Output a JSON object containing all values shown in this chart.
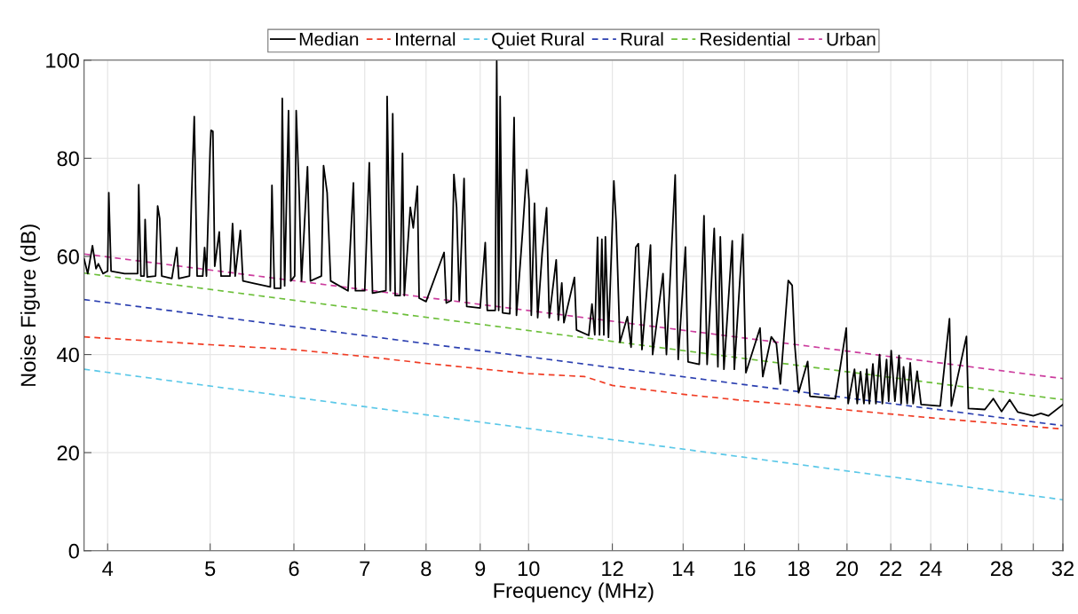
{
  "chart_data": {
    "type": "line",
    "xlabel": "Frequency (MHz)",
    "ylabel": "Noise Figure (dB)",
    "log": "x",
    "grid": true,
    "legend": "top",
    "xlim": [
      3.8,
      32
    ],
    "xticks": [
      4,
      5,
      6,
      7,
      8,
      9,
      10,
      12,
      14,
      16,
      18,
      20,
      22,
      24,
      {
        "value": 26,
        "label": null
      },
      28,
      {
        "value": 30,
        "label": null
      },
      32
    ],
    "ylim": [
      0,
      100
    ],
    "yticks": [
      0,
      20,
      40,
      60,
      80,
      100
    ],
    "series": [
      {
        "name": "Median",
        "color": "#000000",
        "line_style": "solid",
        "x": [
          3.8,
          3.83,
          3.87,
          3.9,
          3.92,
          3.96,
          4.0,
          4.01,
          4.03,
          4.15,
          4.27,
          4.28,
          4.3,
          4.33,
          4.34,
          4.36,
          4.44,
          4.46,
          4.48,
          4.5,
          4.6,
          4.65,
          4.67,
          4.78,
          4.8,
          4.83,
          4.86,
          4.92,
          4.94,
          4.96,
          5.0,
          5.01,
          5.03,
          5.05,
          5.1,
          5.12,
          5.22,
          5.25,
          5.28,
          5.34,
          5.37,
          5.5,
          5.7,
          5.72,
          5.75,
          5.83,
          5.85,
          5.88,
          5.93,
          5.96,
          6.01,
          6.03,
          6.07,
          6.1,
          6.18,
          6.22,
          6.37,
          6.4,
          6.45,
          6.5,
          6.75,
          6.83,
          6.86,
          7.0,
          7.07,
          7.12,
          7.33,
          7.35,
          7.4,
          7.44,
          7.48,
          7.56,
          7.6,
          7.63,
          7.73,
          7.78,
          7.85,
          7.88,
          8.0,
          8.32,
          8.36,
          8.45,
          8.5,
          8.55,
          8.6,
          8.69,
          8.74,
          9.0,
          9.1,
          9.14,
          9.3,
          9.33,
          9.37,
          9.4,
          9.45,
          9.6,
          9.69,
          9.74,
          9.87,
          9.96,
          10.01,
          10.06,
          10.13,
          10.2,
          10.3,
          10.4,
          10.46,
          10.62,
          10.67,
          10.75,
          10.8,
          11.05,
          11.1,
          11.4,
          11.48,
          11.55,
          11.62,
          11.67,
          11.73,
          11.78,
          11.82,
          11.9,
          12.04,
          12.1,
          12.2,
          12.4,
          12.5,
          12.63,
          12.7,
          12.8,
          13.04,
          13.1,
          13.4,
          13.5,
          13.76,
          13.85,
          14.07,
          14.15,
          14.5,
          14.65,
          14.75,
          14.98,
          15.1,
          15.18,
          15.3,
          15.58,
          15.65,
          15.94,
          16.05,
          16.55,
          16.65,
          16.96,
          17.15,
          17.3,
          17.6,
          17.75,
          17.85,
          18.0,
          18.36,
          18.45,
          19.5,
          19.97,
          20.05,
          20.33,
          20.45,
          20.6,
          20.75,
          20.88,
          21.0,
          21.16,
          21.3,
          21.47,
          21.6,
          21.8,
          21.9,
          22.02,
          22.2,
          22.4,
          22.5,
          22.62,
          22.8,
          22.95,
          23.1,
          23.3,
          23.5,
          24.5,
          25.0,
          25.1,
          25.94,
          26.05,
          27.0,
          27.5,
          28.0,
          28.5,
          29.0,
          30.0,
          30.5,
          31.0,
          32.0
        ],
        "values": [
          59.5,
          56.5,
          62.2,
          57.5,
          58.5,
          56.5,
          57,
          73,
          57,
          56.5,
          56.5,
          74.6,
          56,
          56,
          67.5,
          55.8,
          56,
          70.3,
          67.7,
          56,
          55.5,
          61.8,
          55.5,
          56,
          71,
          88.5,
          56,
          56,
          61.8,
          56,
          82,
          85.7,
          85.5,
          58,
          65,
          56,
          56,
          66.7,
          56,
          65.3,
          55,
          54.5,
          53.8,
          74.5,
          53.5,
          53.5,
          92.2,
          54,
          89.7,
          55,
          56,
          89.7,
          72.6,
          55,
          78.3,
          55,
          56,
          78.5,
          73,
          55,
          53,
          75,
          53,
          53,
          79.1,
          52.5,
          53,
          92.6,
          53,
          89.1,
          52,
          52,
          81,
          52,
          70,
          65.8,
          74.3,
          51.5,
          50.8,
          60.8,
          50.5,
          51,
          76.7,
          70,
          51,
          75.9,
          49.8,
          49.5,
          62.8,
          49,
          49,
          99.8,
          49,
          92.6,
          48.5,
          48.3,
          88.3,
          48,
          65,
          77.7,
          71.5,
          48,
          70.8,
          47.5,
          60.6,
          69.9,
          47.5,
          59.3,
          47,
          54.6,
          46.5,
          55.7,
          45,
          43.9,
          50.3,
          44,
          63.9,
          44,
          63.5,
          44,
          64,
          43.5,
          75.4,
          67,
          42.5,
          47.7,
          41.5,
          61.9,
          62.6,
          41,
          62.3,
          40,
          56.5,
          40,
          76.6,
          39,
          61.9,
          38.5,
          38,
          68.3,
          38,
          65.7,
          37.5,
          64,
          37,
          63.2,
          37,
          64.5,
          36.3,
          45.4,
          35.5,
          43.6,
          42.2,
          34,
          55.1,
          54.1,
          42,
          32.2,
          38.6,
          31.5,
          31,
          45.4,
          30,
          37,
          30,
          36.5,
          30,
          37,
          30,
          38.1,
          30,
          40,
          30,
          39,
          30.5,
          40.8,
          30.5,
          39.8,
          30,
          37.5,
          30,
          38.3,
          30,
          36.6,
          29.8,
          29.5,
          47.3,
          29.5,
          43.7,
          29,
          28.8,
          31,
          28.4,
          30.8,
          28.3,
          27.5,
          28,
          27.5,
          29.8
        ]
      },
      {
        "name": "Internal",
        "color": "#f03c24",
        "line_style": "dashed",
        "x": [
          3.8,
          5,
          6,
          7,
          8,
          9,
          10,
          11.3,
          12,
          14,
          16,
          18,
          20,
          24,
          28,
          32
        ],
        "values": [
          43.6,
          42.0,
          41.0,
          39.6,
          38.2,
          37.1,
          36.1,
          35.5,
          33.7,
          31.9,
          30.6,
          29.7,
          28.7,
          27.1,
          25.9,
          24.8
        ]
      },
      {
        "name": "Quiet Rural",
        "color": "#5bc8e8",
        "line_style": "dashed",
        "x": [
          3.8,
          32
        ],
        "values": [
          37.0,
          10.4
        ]
      },
      {
        "name": "Rural",
        "color": "#2b3fb0",
        "line_style": "dashed",
        "x": [
          3.8,
          32
        ],
        "values": [
          51.2,
          25.5
        ]
      },
      {
        "name": "Residential",
        "color": "#6cbf3a",
        "line_style": "dashed",
        "x": [
          3.8,
          32
        ],
        "values": [
          56.6,
          30.8
        ]
      },
      {
        "name": "Urban",
        "color": "#cc3d9e",
        "line_style": "dashed",
        "x": [
          3.8,
          32
        ],
        "values": [
          60.5,
          35.1
        ]
      }
    ]
  }
}
